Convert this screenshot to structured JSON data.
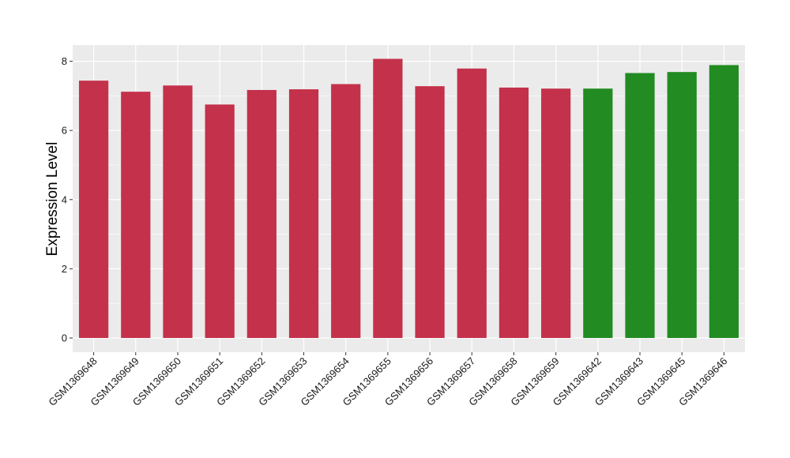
{
  "chart_data": {
    "type": "bar",
    "title": "",
    "xlabel": "",
    "ylabel": "Expression Level",
    "ylim": [
      0,
      8.4
    ],
    "yticks": [
      0,
      2,
      4,
      6,
      8
    ],
    "grid": true,
    "legend": "none",
    "categories": [
      "GSM1369648",
      "GSM1369649",
      "GSM1369650",
      "GSM1369651",
      "GSM1369652",
      "GSM1369653",
      "GSM1369654",
      "GSM1369655",
      "GSM1369656",
      "GSM1369657",
      "GSM1369658",
      "GSM1369659",
      "GSM1369642",
      "GSM1369643",
      "GSM1369645",
      "GSM1369646"
    ],
    "values": [
      7.44,
      7.12,
      7.3,
      6.75,
      7.17,
      7.19,
      7.34,
      8.07,
      7.28,
      7.79,
      7.24,
      7.21,
      7.21,
      7.66,
      7.69,
      7.89
    ],
    "group_index": [
      0,
      0,
      0,
      0,
      0,
      0,
      0,
      0,
      0,
      0,
      0,
      0,
      1,
      1,
      1,
      1
    ],
    "group_colors": [
      "#C4314B",
      "#228B22"
    ],
    "panel_background": "#EBEBEB",
    "grid_color": "#FFFFFF"
  }
}
